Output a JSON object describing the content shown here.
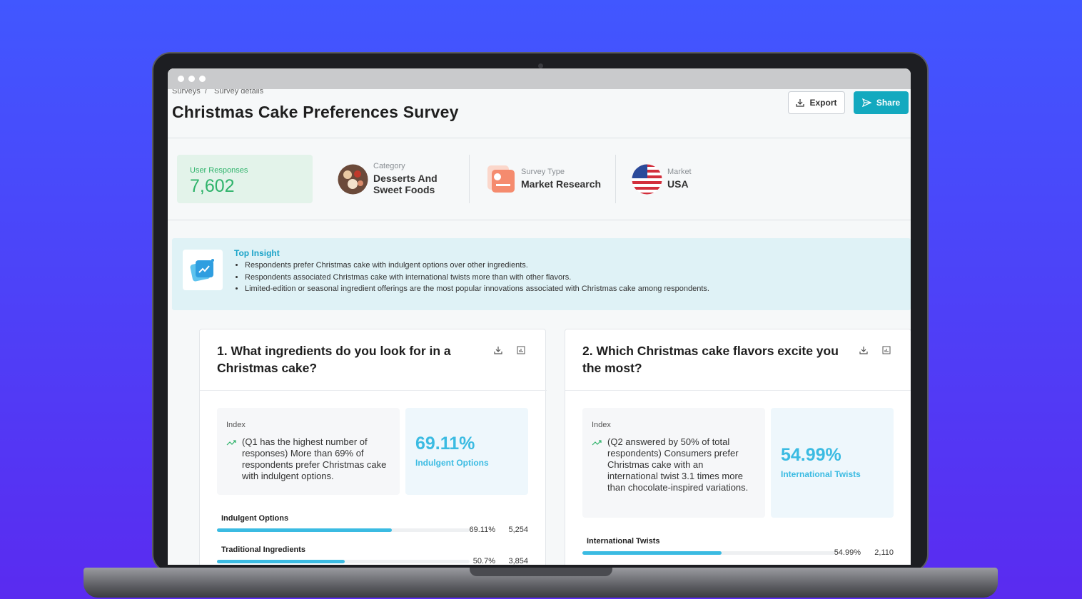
{
  "breadcrumb": [
    "Surveys",
    "Survey details"
  ],
  "breadcrumb_separator": "/",
  "title": "Christmas Cake Preferences Survey",
  "buttons": [
    "Export",
    "Share"
  ],
  "stats": {
    "user_responses": {
      "label": "User Responses",
      "value": "7,602"
    },
    "category": {
      "label": "Category",
      "value": "Desserts And Sweet Foods"
    },
    "survey_type": {
      "label": "Survey Type",
      "value": "Market Research"
    },
    "market": {
      "label": "Market",
      "value": "USA"
    }
  },
  "top_insight": {
    "title": "Top Insight",
    "bullets": [
      "Respondents prefer Christmas cake with indulgent options over other ingredients.",
      "Respondents associated Christmas cake with international twists more than with other flavors.",
      "Limited-edition or seasonal ingredient offerings are the most popular innovations associated with Christmas cake among respondents."
    ]
  },
  "questions": [
    {
      "title": "1. What ingredients do you look for in a Christmas cake?",
      "index_label": "Index",
      "index_text": "(Q1 has the highest number of responses) More than 69% of respondents prefer Christmas cake with indulgent options.",
      "highlight_value": "69.11%",
      "highlight_label": "Indulgent Options",
      "options": [
        {
          "label": "Indulgent Options",
          "percent": 69.11,
          "percent_label": "69.11%",
          "count": "5,254"
        },
        {
          "label": "Traditional Ingredients",
          "percent": 50.7,
          "percent_label": "50.7%",
          "count": "3,854"
        }
      ]
    },
    {
      "title": "2. Which Christmas cake flavors excite you the most?",
      "index_label": "Index",
      "index_text": "(Q2 answered by 50% of total respondents) Consumers prefer Christmas cake with an international twist 3.1 times more than chocolate-inspired variations.",
      "highlight_value": "54.99%",
      "highlight_label": "International Twists",
      "options": [
        {
          "label": "International Twists",
          "percent": 54.99,
          "percent_label": "54.99%",
          "count": "2,110"
        }
      ]
    }
  ]
}
